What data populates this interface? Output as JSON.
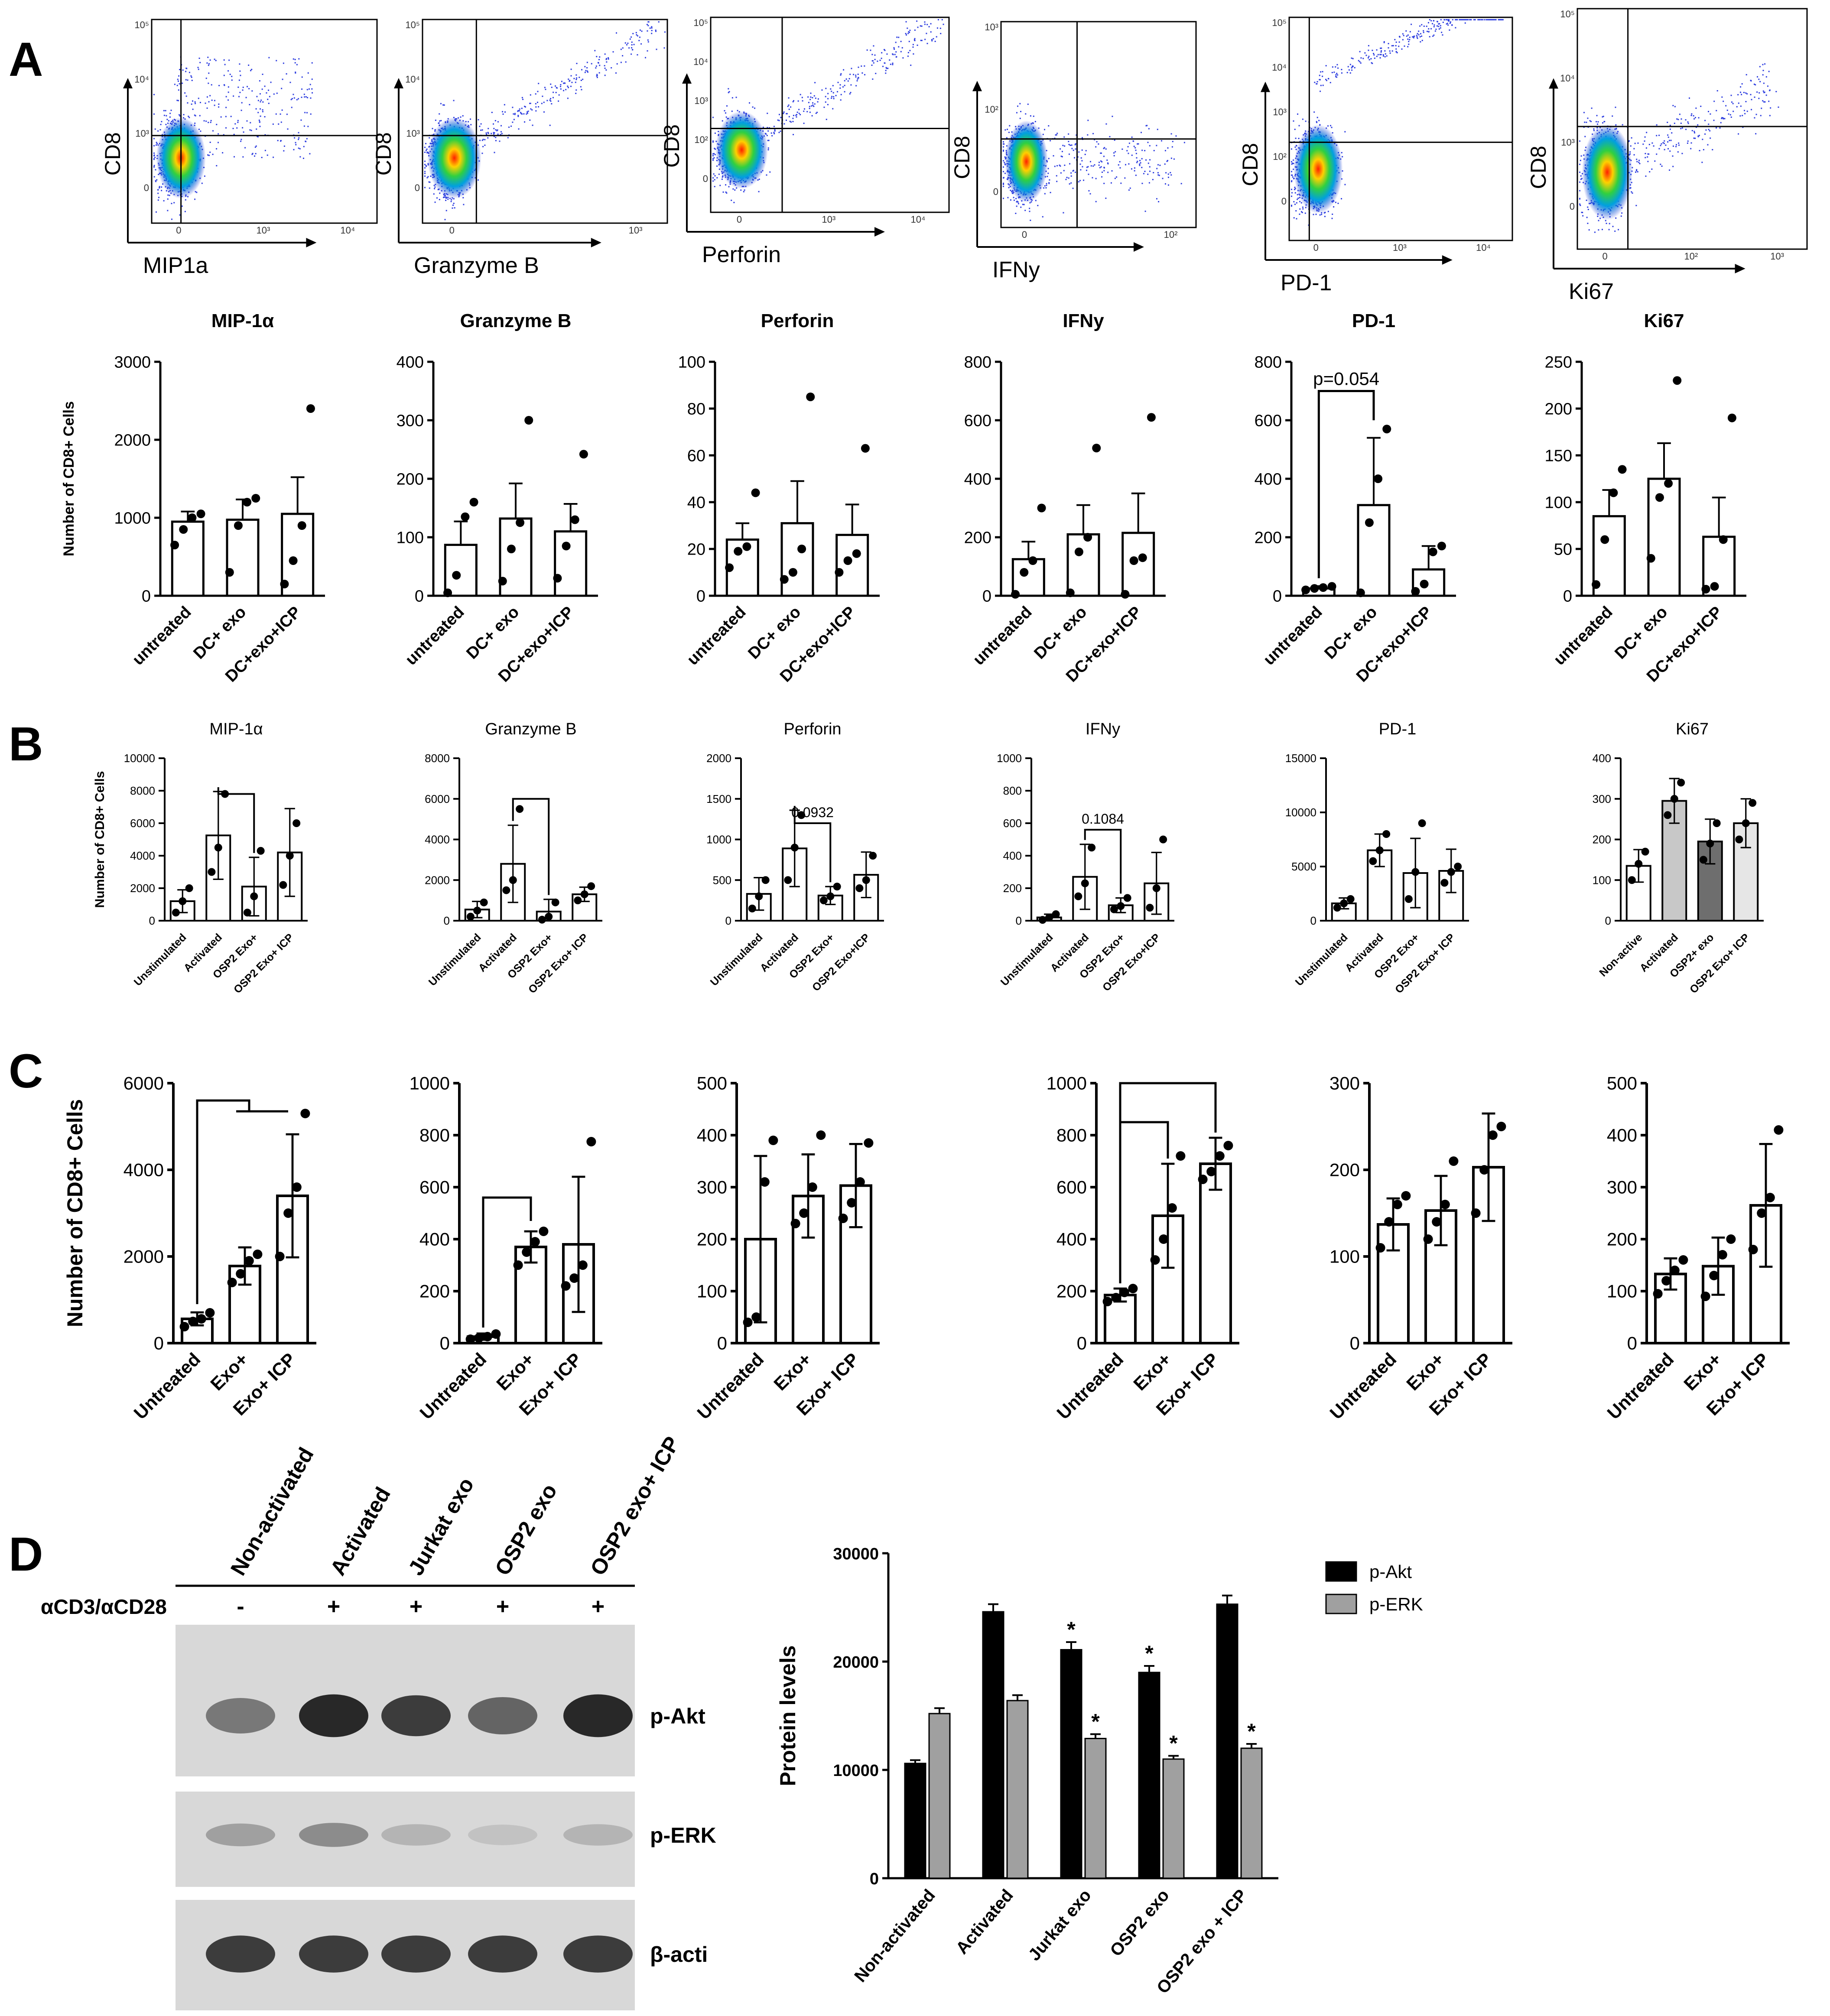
{
  "panel_labels": [
    "A",
    "B",
    "C",
    "D"
  ],
  "flow_plots": [
    {
      "y": "CD8",
      "x": "MIP1a",
      "y_ticks": [
        "10⁵",
        "10⁴",
        "10³",
        "0"
      ],
      "x_ticks": [
        "0",
        "10³",
        "10⁴"
      ]
    },
    {
      "y": "CD8",
      "x": "Granzyme B",
      "y_ticks": [
        "10⁵",
        "10⁴",
        "10³",
        "0"
      ],
      "x_ticks": [
        "0",
        "10³"
      ]
    },
    {
      "y": "CD8",
      "x": "Perforin",
      "y_ticks": [
        "10⁵",
        "10⁴",
        "10³",
        "10²",
        "0"
      ],
      "x_ticks": [
        "0",
        "10³",
        "10⁴"
      ]
    },
    {
      "y": "CD8",
      "x": "IFNy",
      "y_ticks": [
        "10³",
        "10²",
        "0"
      ],
      "x_ticks": [
        "0",
        "10²"
      ]
    },
    {
      "y": "CD8",
      "x": "PD-1",
      "y_ticks": [
        "10⁵",
        "10⁴",
        "10³",
        "10²",
        "0"
      ],
      "x_ticks": [
        "0",
        "10³",
        "10⁴"
      ]
    },
    {
      "y": "CD8",
      "x": "Ki67",
      "y_ticks": [
        "10⁵",
        "10⁴",
        "10³",
        "0"
      ],
      "x_ticks": [
        "0",
        "10²",
        "10³"
      ]
    }
  ],
  "chart_data": [
    {
      "panel": "A",
      "type": "bar",
      "title": "MIP-1α",
      "ylabel": "Number of  CD8+ Cells",
      "categories": [
        "untreated",
        "DC+ exo",
        "DC+exo+ICP"
      ],
      "values": [
        950,
        975,
        1050
      ],
      "errors": [
        130,
        260,
        470
      ],
      "points": [
        [
          650,
          850,
          1000,
          1050
        ],
        [
          300,
          900,
          1200,
          1250
        ],
        [
          150,
          450,
          900,
          2400
        ]
      ],
      "ylim": [
        0,
        3000
      ],
      "yticks": [
        0,
        1000,
        2000,
        3000
      ]
    },
    {
      "panel": "A",
      "type": "bar",
      "title": "Granzyme B",
      "categories": [
        "untreated",
        "DC+ exo",
        "DC+exo+ICP"
      ],
      "values": [
        87,
        132,
        110
      ],
      "errors": [
        40,
        60,
        47
      ],
      "points": [
        [
          5,
          35,
          135,
          160
        ],
        [
          25,
          80,
          125,
          300
        ],
        [
          30,
          85,
          130,
          242
        ]
      ],
      "ylim": [
        0,
        400
      ],
      "yticks": [
        0,
        100,
        200,
        300,
        400
      ]
    },
    {
      "panel": "A",
      "type": "bar",
      "title": "Perforin",
      "categories": [
        "untreated",
        "DC+ exo",
        "DC+exo+ICP"
      ],
      "values": [
        24,
        31,
        26
      ],
      "errors": [
        7,
        18,
        13
      ],
      "points": [
        [
          12,
          19,
          21,
          44
        ],
        [
          7,
          10,
          20,
          85
        ],
        [
          10,
          15,
          18,
          63
        ]
      ],
      "ylim": [
        0,
        100
      ],
      "yticks": [
        0,
        20,
        40,
        60,
        80,
        100
      ]
    },
    {
      "panel": "A",
      "type": "bar",
      "title": "IFNy",
      "categories": [
        "untreated",
        "DC+ exo",
        "DC+exo+ICP"
      ],
      "values": [
        125,
        210,
        215
      ],
      "errors": [
        60,
        100,
        135
      ],
      "points": [
        [
          5,
          80,
          120,
          300
        ],
        [
          10,
          150,
          200,
          505
        ],
        [
          5,
          120,
          130,
          610
        ]
      ],
      "ylim": [
        0,
        800
      ],
      "yticks": [
        0,
        200,
        400,
        600,
        800
      ]
    },
    {
      "panel": "A",
      "type": "bar",
      "title": "PD-1",
      "categories": [
        "untreated",
        "DC+ exo",
        "DC+exo+ICP"
      ],
      "values": [
        25,
        310,
        90
      ],
      "errors": [
        8,
        230,
        80
      ],
      "points": [
        [
          20,
          25,
          28,
          32
        ],
        [
          10,
          250,
          400,
          570
        ],
        [
          15,
          40,
          150,
          170
        ]
      ],
      "ylim": [
        0,
        800
      ],
      "yticks": [
        0,
        200,
        400,
        600,
        800
      ],
      "annotation": "p=0.054"
    },
    {
      "panel": "A",
      "type": "bar",
      "title": "Ki67",
      "categories": [
        "untreated",
        "DC+ exo",
        "DC+exo+ICP"
      ],
      "values": [
        85,
        125,
        63
      ],
      "errors": [
        28,
        38,
        42
      ],
      "points": [
        [
          12,
          60,
          110,
          135
        ],
        [
          40,
          105,
          120,
          230
        ],
        [
          7,
          10,
          60,
          190
        ]
      ],
      "ylim": [
        0,
        250
      ],
      "yticks": [
        0,
        50,
        100,
        150,
        200,
        250
      ]
    },
    {
      "panel": "B",
      "type": "bar",
      "title": "MIP-1α",
      "ylabel": "Number of  CD8+ Cells",
      "categories": [
        "Unstimulated",
        "Activated",
        "OSP2 Exo+",
        "OSP2 Exo+ ICP"
      ],
      "values": [
        1200,
        5250,
        2100,
        4200
      ],
      "errors": [
        700,
        2700,
        1800,
        2700
      ],
      "points": [
        [
          500,
          1200,
          2000
        ],
        [
          3000,
          4500,
          7800
        ],
        [
          500,
          1500,
          4300
        ],
        [
          2200,
          4000,
          6000
        ]
      ],
      "ylim": [
        0,
        10000
      ],
      "yticks": [
        0,
        2000,
        4000,
        6000,
        8000,
        10000
      ]
    },
    {
      "panel": "B",
      "type": "bar",
      "title": "Granzyme B",
      "categories": [
        "Unstimulated",
        "Activated",
        "OSP2 Exo+",
        "OSP2 Exo+ ICP"
      ],
      "values": [
        550,
        2800,
        450,
        1300
      ],
      "errors": [
        400,
        1900,
        600,
        350
      ],
      "points": [
        [
          200,
          500,
          900
        ],
        [
          1500,
          2000,
          5500
        ],
        [
          50,
          200,
          900
        ],
        [
          1000,
          1300,
          1700
        ]
      ],
      "ylim": [
        0,
        8000
      ],
      "yticks": [
        0,
        2000,
        4000,
        6000,
        8000
      ]
    },
    {
      "panel": "B",
      "type": "bar",
      "title": "Perforin",
      "categories": [
        "Unstimulated",
        "Activated",
        "OSP2 Exo+",
        "OSP2 Exo+ICP"
      ],
      "values": [
        330,
        890,
        310,
        565
      ],
      "errors": [
        200,
        470,
        110,
        280
      ],
      "points": [
        [
          150,
          300,
          500
        ],
        [
          500,
          900,
          1300
        ],
        [
          250,
          300,
          420
        ],
        [
          400,
          500,
          800
        ]
      ],
      "ylim": [
        0,
        2000
      ],
      "yticks": [
        0,
        500,
        1000,
        1500,
        2000
      ],
      "annotation": "0.0932"
    },
    {
      "panel": "B",
      "type": "bar",
      "title": "IFNy",
      "categories": [
        "Unstimulated",
        "Activated",
        "OSP2 Exo+",
        "OSP2 Exo+ICP"
      ],
      "values": [
        20,
        270,
        95,
        230
      ],
      "errors": [
        20,
        200,
        45,
        190
      ],
      "points": [
        [
          5,
          20,
          40
        ],
        [
          150,
          230,
          450
        ],
        [
          70,
          90,
          140
        ],
        [
          80,
          200,
          500
        ]
      ],
      "ylim": [
        0,
        1000
      ],
      "yticks": [
        0,
        200,
        400,
        600,
        800,
        1000
      ],
      "annotation": "0.1084"
    },
    {
      "panel": "B",
      "type": "bar",
      "title": "PD-1",
      "categories": [
        "Unstimulated",
        "Activated",
        "OSP2 Exo+",
        "OSP2 Exo+ ICP"
      ],
      "values": [
        1600,
        6500,
        4400,
        4600
      ],
      "errors": [
        500,
        1500,
        3200,
        2000
      ],
      "points": [
        [
          1200,
          1600,
          2000
        ],
        [
          5500,
          6500,
          8000
        ],
        [
          2000,
          4500,
          9000
        ],
        [
          3500,
          4500,
          5000
        ]
      ],
      "ylim": [
        0,
        15000
      ],
      "yticks": [
        0,
        5000,
        10000,
        15000
      ]
    },
    {
      "panel": "B",
      "type": "bar",
      "title": "Ki67",
      "categories": [
        "Non-active",
        "Activated",
        "OSP2+ exo",
        "OSP2 Exo+ ICP"
      ],
      "values": [
        135,
        295,
        195,
        240
      ],
      "errors": [
        40,
        55,
        55,
        60
      ],
      "points": [
        [
          100,
          140,
          170
        ],
        [
          260,
          300,
          340
        ],
        [
          150,
          190,
          240
        ],
        [
          200,
          240,
          290
        ]
      ],
      "ylim": [
        0,
        400
      ],
      "yticks": [
        0,
        100,
        200,
        300,
        400
      ],
      "fills": [
        "#ffffff",
        "#c8c8c8",
        "#6e6e6e",
        "#e6e6e6"
      ]
    },
    {
      "panel": "C",
      "type": "bar",
      "ylabel": "Number of  CD8+ Cells",
      "categories": [
        "Untreated",
        "Exo+",
        "Exo+ ICP"
      ],
      "values": [
        560,
        1780,
        3400
      ],
      "errors": [
        150,
        430,
        1420
      ],
      "points": [
        [
          380,
          500,
          560,
          700
        ],
        [
          1400,
          1600,
          1900,
          2050
        ],
        [
          2000,
          3000,
          3600,
          5300
        ]
      ],
      "ylim": [
        0,
        6000
      ],
      "yticks": [
        0,
        2000,
        4000,
        6000
      ]
    },
    {
      "panel": "C",
      "type": "bar",
      "categories": [
        "Untreated",
        "Exo+",
        "Exo+ ICP"
      ],
      "values": [
        25,
        370,
        380
      ],
      "errors": [
        12,
        60,
        260
      ],
      "points": [
        [
          15,
          20,
          25,
          35
        ],
        [
          300,
          350,
          390,
          430
        ],
        [
          220,
          250,
          300,
          775
        ]
      ],
      "ylim": [
        0,
        1000
      ],
      "yticks": [
        0,
        200,
        400,
        600,
        800,
        1000
      ]
    },
    {
      "panel": "C",
      "type": "bar",
      "categories": [
        "Untreated",
        "Exo+",
        "Exo+ ICP"
      ],
      "values": [
        200,
        283,
        303
      ],
      "errors": [
        160,
        80,
        80
      ],
      "points": [
        [
          40,
          50,
          310,
          390
        ],
        [
          230,
          250,
          300,
          400
        ],
        [
          240,
          270,
          310,
          385
        ]
      ],
      "ylim": [
        0,
        500
      ],
      "yticks": [
        0,
        100,
        200,
        300,
        400,
        500
      ]
    },
    {
      "panel": "C",
      "type": "bar",
      "categories": [
        "Untreated",
        "Exo+",
        "Exo+ ICP"
      ],
      "values": [
        185,
        490,
        690
      ],
      "errors": [
        25,
        200,
        100
      ],
      "points": [
        [
          160,
          175,
          195,
          210
        ],
        [
          320,
          400,
          520,
          720
        ],
        [
          630,
          660,
          720,
          760
        ]
      ],
      "ylim": [
        0,
        1000
      ],
      "yticks": [
        0,
        200,
        400,
        600,
        800,
        1000
      ]
    },
    {
      "panel": "C",
      "type": "bar",
      "categories": [
        "Untreated",
        "Exo+",
        "Exo+ ICP"
      ],
      "values": [
        137,
        153,
        203
      ],
      "errors": [
        30,
        40,
        62
      ],
      "points": [
        [
          110,
          140,
          160,
          170
        ],
        [
          120,
          140,
          160,
          210
        ],
        [
          150,
          200,
          240,
          250
        ]
      ],
      "ylim": [
        0,
        300
      ],
      "yticks": [
        0,
        100,
        200,
        300
      ]
    },
    {
      "panel": "C",
      "type": "bar",
      "categories": [
        "Untreated",
        "Exo+",
        "Exo+ ICP"
      ],
      "values": [
        133,
        148,
        265
      ],
      "errors": [
        30,
        55,
        118
      ],
      "points": [
        [
          95,
          120,
          140,
          160
        ],
        [
          90,
          130,
          170,
          200
        ],
        [
          180,
          250,
          280,
          410
        ]
      ],
      "ylim": [
        0,
        500
      ],
      "yticks": [
        0,
        100,
        200,
        300,
        400,
        500
      ]
    },
    {
      "panel": "D",
      "type": "bar",
      "ylabel": "Protein levels",
      "categories": [
        "Non-activated",
        "Activated",
        "Jurkat exo",
        "OSP2 exo",
        "OSP2 exo + ICP"
      ],
      "series": [
        {
          "name": "p-Akt",
          "values": [
            10600,
            24600,
            21100,
            19000,
            25300
          ],
          "errors": [
            300,
            700,
            700,
            600,
            800
          ],
          "color": "#000000"
        },
        {
          "name": "p-ERK",
          "values": [
            15200,
            16400,
            12900,
            11000,
            12000
          ],
          "errors": [
            500,
            500,
            400,
            300,
            400
          ],
          "color": "#a0a0a0"
        }
      ],
      "stars": {
        "p-Akt": [
          "",
          "",
          "*",
          "*",
          ""
        ],
        "p-ERK": [
          "",
          "",
          "*",
          "*",
          "*"
        ]
      },
      "ylim": [
        0,
        30000
      ],
      "yticks": [
        0,
        10000,
        20000,
        30000
      ]
    }
  ],
  "western": {
    "lanes": [
      "Non-activated",
      "Activated",
      "Jurkat exo",
      "OSP2 exo",
      "OSP2 exo+ ICP"
    ],
    "treatment_label": "αCD3/αCD28",
    "treatment_marks": [
      "-",
      "+",
      "+",
      "+",
      "+"
    ],
    "bands": [
      "p-Akt",
      "p-ERK",
      "β-acti"
    ],
    "akt_intensity": [
      0.55,
      0.95,
      0.85,
      0.65,
      0.95
    ],
    "erk_intensity": [
      0.35,
      0.45,
      0.25,
      0.18,
      0.25
    ],
    "actin_intensity": [
      0.85,
      0.85,
      0.85,
      0.85,
      0.85
    ]
  }
}
